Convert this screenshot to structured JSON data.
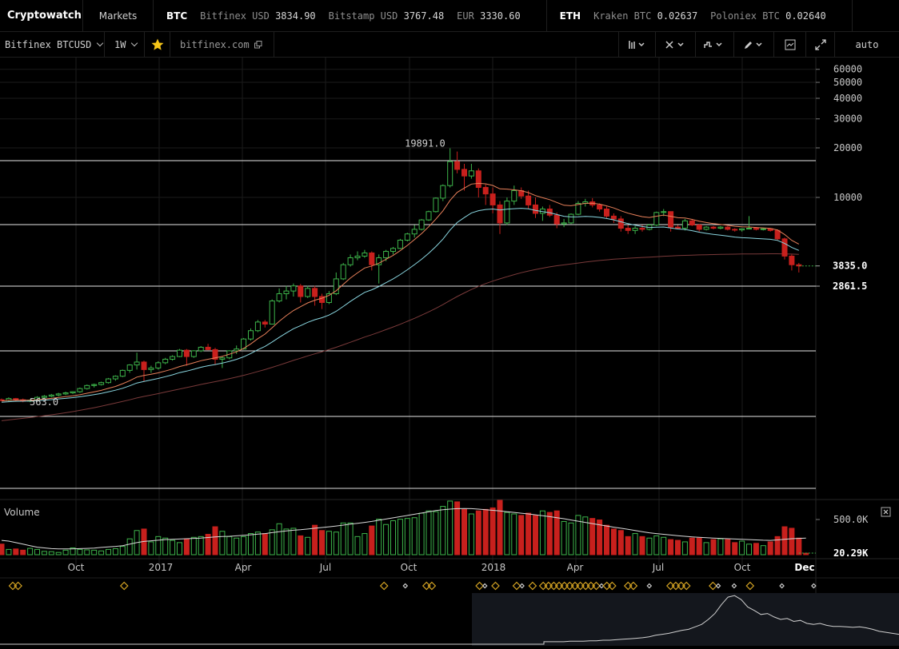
{
  "ticker": {
    "brand": "Cryptowatch",
    "markets": "Markets",
    "groups": [
      {
        "asset": "BTC",
        "quotes": [
          {
            "label": "Bitfinex USD",
            "price": "3834.90"
          },
          {
            "label": "Bitstamp USD",
            "price": "3767.48"
          },
          {
            "label": "EUR",
            "price": "3330.60"
          }
        ]
      },
      {
        "asset": "ETH",
        "quotes": [
          {
            "label": "Kraken BTC",
            "price": "0.02637"
          },
          {
            "label": "Poloniex BTC",
            "price": "0.02640"
          }
        ]
      }
    ]
  },
  "toolbar": {
    "market": "Bitfinex BTCUSD",
    "period": "1W",
    "site": "bitfinex.com",
    "scale": "auto",
    "star_color": "#f5c518",
    "icons": [
      "star-icon",
      "external-link-icon",
      "candles-icon",
      "crosshair-icon",
      "indicators-icon",
      "pencil-icon",
      "screenshot-icon",
      "expand-icon"
    ]
  },
  "colors": {
    "up": "#3db34a",
    "down": "#c8201d",
    "ema1": "#e8805a",
    "ema2": "#8ad6e0",
    "sma": "#7a3a3a",
    "level": "#e6e6e6",
    "event": "#d4a323"
  },
  "chart_data": {
    "type": "candlestick",
    "y_scale": "log",
    "y_ticks": [
      10000,
      20000,
      30000,
      40000,
      50000,
      60000
    ],
    "y_tick_labels": [
      "10000",
      "20000",
      "30000",
      "40000",
      "50000",
      "60000"
    ],
    "x_labels": [
      "Oct",
      "2017",
      "Apr",
      "Jul",
      "Oct",
      "2018",
      "Apr",
      "Jul",
      "Oct",
      "Dec"
    ],
    "annotations": {
      "high": "19891.0",
      "low": "563.0"
    },
    "last_price": "3835.0",
    "level_label": "2861.5",
    "candles": [
      [
        590,
        600,
        580,
        585
      ],
      [
        585,
        610,
        575,
        600
      ],
      [
        600,
        605,
        580,
        590
      ],
      [
        590,
        600,
        570,
        580
      ],
      [
        580,
        595,
        570,
        585
      ],
      [
        585,
        620,
        580,
        610
      ],
      [
        610,
        630,
        600,
        620
      ],
      [
        620,
        640,
        610,
        630
      ],
      [
        630,
        650,
        620,
        640
      ],
      [
        640,
        660,
        630,
        650
      ],
      [
        650,
        665,
        640,
        660
      ],
      [
        660,
        700,
        650,
        690
      ],
      [
        690,
        730,
        680,
        720
      ],
      [
        720,
        740,
        700,
        730
      ],
      [
        730,
        760,
        720,
        750
      ],
      [
        750,
        800,
        740,
        790
      ],
      [
        790,
        830,
        770,
        820
      ],
      [
        820,
        900,
        810,
        890
      ],
      [
        890,
        970,
        860,
        960
      ],
      [
        960,
        1140,
        900,
        1000
      ],
      [
        1000,
        1020,
        760,
        900
      ],
      [
        900,
        950,
        860,
        920
      ],
      [
        920,
        1010,
        900,
        990
      ],
      [
        990,
        1060,
        970,
        1040
      ],
      [
        1040,
        1100,
        1020,
        1080
      ],
      [
        1080,
        1200,
        1070,
        1180
      ],
      [
        1180,
        1200,
        950,
        1080
      ],
      [
        1080,
        1180,
        1060,
        1170
      ],
      [
        1170,
        1250,
        1150,
        1230
      ],
      [
        1230,
        1290,
        1180,
        1190
      ],
      [
        1190,
        1220,
        960,
        1040
      ],
      [
        1040,
        1080,
        920,
        1060
      ],
      [
        1060,
        1180,
        1040,
        1170
      ],
      [
        1170,
        1260,
        1120,
        1200
      ],
      [
        1200,
        1400,
        1190,
        1380
      ],
      [
        1380,
        1600,
        1350,
        1550
      ],
      [
        1550,
        1800,
        1520,
        1750
      ],
      [
        1750,
        1800,
        1620,
        1700
      ],
      [
        1700,
        2400,
        1690,
        2350
      ],
      [
        2350,
        2800,
        2300,
        2600
      ],
      [
        2600,
        2900,
        2400,
        2700
      ],
      [
        2700,
        3000,
        2500,
        2900
      ],
      [
        2900,
        2980,
        2300,
        2500
      ],
      [
        2500,
        2900,
        2450,
        2800
      ],
      [
        2800,
        2900,
        2200,
        2500
      ],
      [
        2500,
        2600,
        2100,
        2300
      ],
      [
        2300,
        2700,
        2250,
        2600
      ],
      [
        2600,
        3500,
        2550,
        3200
      ],
      [
        3200,
        4000,
        3150,
        3900
      ],
      [
        3900,
        4500,
        3800,
        4300
      ],
      [
        4300,
        4700,
        4150,
        4400
      ],
      [
        4400,
        4800,
        4300,
        4600
      ],
      [
        4600,
        4700,
        3600,
        3900
      ],
      [
        3900,
        4500,
        3000,
        4300
      ],
      [
        4300,
        4800,
        4100,
        4700
      ],
      [
        4700,
        5000,
        4500,
        4900
      ],
      [
        4900,
        5600,
        4850,
        5500
      ],
      [
        5500,
        6100,
        5400,
        6000
      ],
      [
        6000,
        6800,
        5700,
        6400
      ],
      [
        6400,
        7400,
        6300,
        7300
      ],
      [
        7300,
        8300,
        7200,
        8200
      ],
      [
        8200,
        10000,
        8100,
        9900
      ],
      [
        9900,
        12000,
        9500,
        11800
      ],
      [
        11800,
        19891,
        11500,
        16500
      ],
      [
        16500,
        19000,
        14000,
        14800
      ],
      [
        14800,
        16000,
        11000,
        13500
      ],
      [
        13500,
        16000,
        13000,
        14500
      ],
      [
        14500,
        15000,
        10000,
        11500
      ],
      [
        11500,
        12000,
        9000,
        10500
      ],
      [
        10500,
        11500,
        8000,
        9000
      ],
      [
        9000,
        9500,
        6000,
        7000
      ],
      [
        7000,
        10000,
        6800,
        9500
      ],
      [
        9500,
        11800,
        9000,
        11000
      ],
      [
        11000,
        11500,
        9800,
        10200
      ],
      [
        10200,
        11000,
        8500,
        9000
      ],
      [
        9000,
        10000,
        7500,
        8000
      ],
      [
        8000,
        8800,
        7200,
        8500
      ],
      [
        8500,
        9000,
        7600,
        7800
      ],
      [
        7800,
        8100,
        6500,
        6900
      ],
      [
        6900,
        7400,
        6600,
        7000
      ],
      [
        7000,
        8000,
        6900,
        7900
      ],
      [
        7900,
        9500,
        7800,
        9200
      ],
      [
        9200,
        9800,
        8800,
        9400
      ],
      [
        9400,
        9900,
        8700,
        9000
      ],
      [
        9000,
        9200,
        8200,
        8500
      ],
      [
        8500,
        8800,
        7500,
        7700
      ],
      [
        7700,
        8000,
        7000,
        7400
      ],
      [
        7400,
        7700,
        6200,
        6500
      ],
      [
        6500,
        6800,
        6000,
        6300
      ],
      [
        6300,
        6700,
        6000,
        6500
      ],
      [
        6500,
        6800,
        6200,
        6400
      ],
      [
        6400,
        6900,
        6300,
        6800
      ],
      [
        6800,
        8200,
        6700,
        8100
      ],
      [
        8100,
        8500,
        7700,
        8200
      ],
      [
        8200,
        8200,
        6200,
        6600
      ],
      [
        6600,
        6800,
        6400,
        6500
      ],
      [
        6500,
        7400,
        6300,
        7200
      ],
      [
        7200,
        7400,
        6700,
        6800
      ],
      [
        6800,
        6900,
        6200,
        6400
      ],
      [
        6400,
        6700,
        6300,
        6600
      ],
      [
        6600,
        6700,
        6400,
        6500
      ],
      [
        6500,
        6700,
        6400,
        6600
      ],
      [
        6600,
        6700,
        6300,
        6400
      ],
      [
        6400,
        6500,
        6200,
        6350
      ],
      [
        6350,
        6500,
        6200,
        6450
      ],
      [
        6450,
        7700,
        6400,
        6500
      ],
      [
        6500,
        6600,
        6300,
        6400
      ],
      [
        6400,
        6500,
        6300,
        6450
      ],
      [
        6450,
        6500,
        6200,
        6300
      ],
      [
        6300,
        6400,
        5500,
        5600
      ],
      [
        5600,
        5700,
        4200,
        4400
      ],
      [
        4400,
        4500,
        3600,
        3900
      ],
      [
        3900,
        4000,
        3500,
        3835
      ]
    ],
    "ema1": [
      580,
      585,
      587,
      586,
      586,
      590,
      596,
      602,
      609,
      616,
      623,
      633,
      646,
      659,
      673,
      692,
      711,
      738,
      770,
      810,
      828,
      842,
      860,
      882,
      907,
      939,
      962,
      989,
      1019,
      1040,
      1060,
      1082,
      1115,
      1153,
      1210,
      1288,
      1387,
      1478,
      1614,
      1768,
      1913,
      2056,
      2168,
      2287,
      2374,
      2443,
      2540,
      2710,
      2966,
      3235,
      3481,
      3726,
      3830,
      3986,
      4207,
      4441,
      4752,
      5113,
      5543,
      6033,
      6633,
      7381,
      8286,
      9597,
      10731,
      11402,
      12051,
      12179,
      12088,
      11822,
      11273,
      11234,
      11115,
      10986,
      10690,
      10260,
      9953,
      9693,
      9315,
      8966,
      8900,
      9056,
      9211,
      9218,
      9108,
      8879,
      8630,
      8300,
      8019,
      7818,
      7640,
      7552,
      7687,
      7814,
      7677,
      7531,
      7495,
      7356,
      7177,
      7043,
      6932,
      6855,
      6772,
      6679,
      6625,
      6615,
      6565,
      6532,
      6489,
      6341,
      5952,
      5484,
      5208
    ],
    "ema2": [
      570,
      574,
      577,
      578,
      580,
      583,
      587,
      591,
      597,
      602,
      608,
      615,
      624,
      634,
      645,
      659,
      674,
      693,
      717,
      746,
      763,
      778,
      795,
      815,
      836,
      862,
      881,
      904,
      929,
      949,
      966,
      985,
      1010,
      1038,
      1076,
      1126,
      1188,
      1244,
      1324,
      1412,
      1502,
      1593,
      1664,
      1743,
      1807,
      1860,
      1929,
      2032,
      2177,
      2336,
      2493,
      2651,
      2746,
      2875,
      3034,
      3200,
      3400,
      3636,
      3904,
      4209,
      4575,
      5028,
      5580,
      6336,
      7036,
      7544,
      8051,
      8309,
      8449,
      8505,
      8384,
      8482,
      8541,
      8594,
      8524,
      8330,
      8204,
      8077,
      7874,
      7679,
      7614,
      7633,
      7670,
      7637,
      7563,
      7443,
      7307,
      7113,
      6930,
      6786,
      6654,
      6570,
      6593,
      6613,
      6523,
      6432,
      6385,
      6282,
      6151,
      6047,
      5958,
      5891,
      5820,
      5743,
      5694,
      5668,
      5628,
      5600,
      5567,
      5478,
      5252,
      4968,
      4764
    ],
    "sma": [
      440,
      445,
      450,
      455,
      460,
      466,
      472,
      478,
      485,
      492,
      500,
      509,
      518,
      528,
      539,
      551,
      563,
      576,
      590,
      605,
      618,
      630,
      643,
      657,
      671,
      686,
      700,
      715,
      731,
      746,
      760,
      775,
      792,
      810,
      830,
      852,
      876,
      900,
      928,
      958,
      990,
      1023,
      1055,
      1089,
      1122,
      1155,
      1190,
      1229,
      1272,
      1319,
      1367,
      1418,
      1465,
      1517,
      1573,
      1632,
      1697,
      1767,
      1843,
      1926,
      2017,
      2119,
      2233,
      2367,
      2500,
      2628,
      2759,
      2880,
      2996,
      3103,
      3200,
      3300,
      3395,
      3489,
      3573,
      3649,
      3720,
      3786,
      3843,
      3893,
      3942,
      3994,
      4046,
      4094,
      4137,
      4176,
      4212,
      4242,
      4269,
      4294,
      4317,
      4338,
      4364,
      4391,
      4411,
      4429,
      4447,
      4463,
      4476,
      4488,
      4498,
      4508,
      4516,
      4523,
      4529,
      4535,
      4539,
      4543,
      4546,
      4546,
      4538,
      4525,
      4512
    ],
    "volume_labels": [
      "500.0K",
      "20.29K"
    ],
    "volume": [
      70,
      35,
      38,
      30,
      42,
      35,
      22,
      20,
      15,
      30,
      45,
      35,
      32,
      30,
      25,
      35,
      40,
      55,
      105,
      160,
      170,
      85,
      120,
      110,
      95,
      80,
      105,
      115,
      120,
      135,
      185,
      155,
      120,
      110,
      120,
      140,
      150,
      140,
      165,
      205,
      170,
      175,
      125,
      115,
      195,
      160,
      155,
      150,
      210,
      210,
      120,
      140,
      190,
      235,
      200,
      225,
      235,
      240,
      245,
      275,
      290,
      285,
      320,
      355,
      350,
      300,
      270,
      290,
      300,
      310,
      360,
      280,
      270,
      260,
      275,
      260,
      290,
      280,
      290,
      220,
      210,
      260,
      250,
      240,
      230,
      195,
      170,
      160,
      120,
      140,
      120,
      110,
      125,
      115,
      100,
      95,
      85,
      110,
      110,
      80,
      100,
      105,
      100,
      80,
      90,
      70,
      75,
      60,
      85,
      120,
      185,
      175,
      110,
      10
    ],
    "volume_avg": [
      95,
      90,
      80,
      70,
      60,
      50,
      45,
      40,
      38,
      38,
      38,
      40,
      42,
      44,
      48,
      52,
      55,
      60,
      70,
      80,
      88,
      92,
      96,
      100,
      102,
      104,
      106,
      108,
      110,
      114,
      118,
      120,
      122,
      125,
      128,
      132,
      136,
      140,
      146,
      152,
      158,
      162,
      165,
      170,
      175,
      180,
      185,
      190,
      196,
      202,
      208,
      214,
      220,
      228,
      236,
      244,
      252,
      260,
      268,
      276,
      284,
      292,
      298,
      302,
      305,
      306,
      305,
      302,
      298,
      294,
      290,
      285,
      280,
      275,
      270,
      264,
      258,
      252,
      245,
      238,
      230,
      222,
      214,
      206,
      198,
      190,
      182,
      175,
      168,
      160,
      152,
      145,
      140,
      135,
      130,
      126,
      122,
      118,
      115,
      112,
      110,
      108,
      106,
      104,
      102,
      100,
      98,
      96,
      95,
      98,
      102,
      106,
      108,
      110
    ],
    "event_markers": [
      [
        0,
        "o"
      ],
      [
        1,
        "o"
      ],
      [
        21,
        "o"
      ],
      [
        70,
        "o"
      ],
      [
        74,
        "w"
      ],
      [
        78,
        "o"
      ],
      [
        79,
        "o"
      ],
      [
        88,
        "o"
      ],
      [
        89,
        "w"
      ],
      [
        91,
        "o"
      ],
      [
        95,
        "o"
      ],
      [
        96,
        "w"
      ],
      [
        98,
        "o"
      ],
      [
        100,
        "o"
      ],
      [
        101,
        "o"
      ],
      [
        102,
        "o"
      ],
      [
        103,
        "o"
      ],
      [
        104,
        "o"
      ],
      [
        105,
        "o"
      ],
      [
        106,
        "o"
      ],
      [
        107,
        "o"
      ],
      [
        108,
        "o"
      ],
      [
        109,
        "o"
      ],
      [
        110,
        "o"
      ],
      [
        111,
        "w"
      ],
      [
        112,
        "o"
      ],
      [
        113,
        "o"
      ],
      [
        116,
        "o"
      ],
      [
        117,
        "o"
      ],
      [
        120,
        "w"
      ],
      [
        124,
        "o"
      ],
      [
        125,
        "o"
      ],
      [
        126,
        "o"
      ],
      [
        127,
        "o"
      ],
      [
        132,
        "o"
      ],
      [
        133,
        "w"
      ],
      [
        136,
        "w"
      ],
      [
        139,
        "o"
      ],
      [
        145,
        "w"
      ],
      [
        151,
        "w"
      ]
    ],
    "overview": [
      0.05,
      0.05,
      0.05,
      0.05,
      0.06,
      0.06,
      0.06,
      0.07,
      0.07,
      0.08,
      0.08,
      0.09,
      0.1,
      0.11,
      0.12,
      0.13,
      0.15,
      0.18,
      0.2,
      0.22,
      0.25,
      0.28,
      0.3,
      0.35,
      0.4,
      0.5,
      0.62,
      0.8,
      0.95,
      0.98,
      0.9,
      0.75,
      0.68,
      0.6,
      0.62,
      0.55,
      0.5,
      0.52,
      0.46,
      0.48,
      0.42,
      0.4,
      0.42,
      0.38,
      0.36,
      0.36,
      0.35,
      0.34,
      0.35,
      0.33,
      0.3,
      0.26,
      0.24,
      0.22,
      0.2
    ]
  },
  "axis": {
    "positions_note": ""
  }
}
